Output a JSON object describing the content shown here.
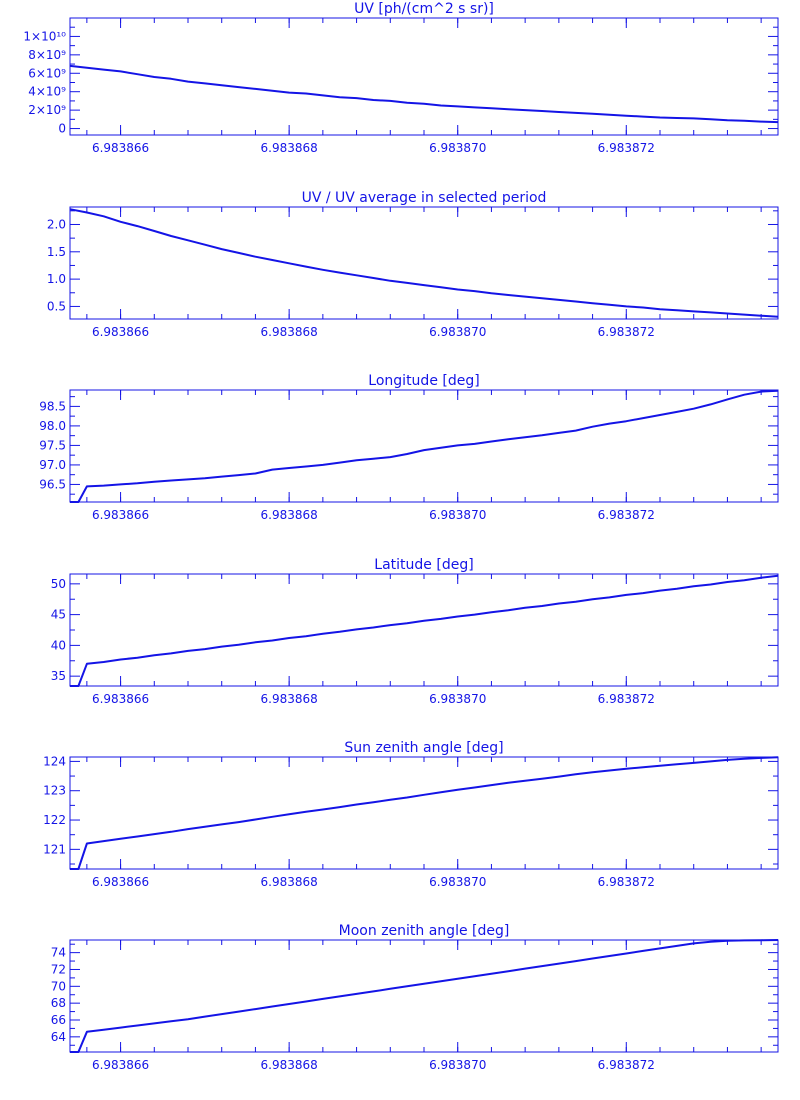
{
  "colors": {
    "axis": "#1414e6",
    "background": "#ffffff"
  },
  "chart_data": [
    {
      "type": "line",
      "title": "UV [ph/(cm^2 s sr)]",
      "xlabel": "",
      "ylabel": "",
      "xlim": [
        6.9838654,
        6.9838738
      ],
      "ylim": [
        -700000000.0,
        12000000000.0
      ],
      "yticks": [
        0,
        2000000000.0,
        4000000000.0,
        6000000000.0,
        8000000000.0,
        10000000000.0
      ],
      "ytick_labels": [
        "0",
        "2×10⁹",
        "4×10⁹",
        "6×10⁹",
        "8×10⁹",
        "1×10¹⁰"
      ],
      "xticks": [
        6.983866,
        6.983868,
        6.98387,
        6.983872
      ],
      "xtick_labels": [
        "6.983866",
        "6.983868",
        "6.983870",
        "6.983872"
      ],
      "grid": false,
      "series": [
        {
          "x": [
            6.9838654,
            6.9838656,
            6.9838658,
            6.983866,
            6.9838662,
            6.9838664,
            6.9838666,
            6.9838668,
            6.983867,
            6.9838672,
            6.9838674,
            6.9838676,
            6.9838678,
            6.983868,
            6.9838682,
            6.9838684,
            6.9838686,
            6.9838688,
            6.983869,
            6.9838692,
            6.9838694,
            6.9838696,
            6.9838698,
            6.98387,
            6.9838702,
            6.9838704,
            6.9838706,
            6.9838708,
            6.983871,
            6.9838712,
            6.9838714,
            6.9838716,
            6.9838718,
            6.983872,
            6.9838722,
            6.9838724,
            6.9838726,
            6.9838728,
            6.983873,
            6.9838732,
            6.9838734,
            6.9838736,
            6.9838738
          ],
          "y": [
            6800000000.0,
            6600000000.0,
            6400000000.0,
            6200000000.0,
            5900000000.0,
            5600000000.0,
            5400000000.0,
            5100000000.0,
            4900000000.0,
            4700000000.0,
            4500000000.0,
            4300000000.0,
            4100000000.0,
            3900000000.0,
            3800000000.0,
            3600000000.0,
            3400000000.0,
            3300000000.0,
            3100000000.0,
            3000000000.0,
            2800000000.0,
            2700000000.0,
            2500000000.0,
            2400000000.0,
            2300000000.0,
            2200000000.0,
            2100000000.0,
            2000000000.0,
            1900000000.0,
            1800000000.0,
            1700000000.0,
            1600000000.0,
            1500000000.0,
            1400000000.0,
            1300000000.0,
            1200000000.0,
            1150000000.0,
            1100000000.0,
            1000000000.0,
            900000000.0,
            850000000.0,
            750000000.0,
            700000000.0
          ]
        }
      ]
    },
    {
      "type": "line",
      "title": "UV / UV average in selected period",
      "xlabel": "",
      "ylabel": "",
      "xlim": [
        6.9838654,
        6.9838738
      ],
      "ylim": [
        0.27,
        2.32
      ],
      "yticks": [
        0.5,
        1.0,
        1.5,
        2.0
      ],
      "ytick_labels": [
        "0.5",
        "1.0",
        "1.5",
        "2.0"
      ],
      "xticks": [
        6.983866,
        6.983868,
        6.98387,
        6.983872
      ],
      "xtick_labels": [
        "6.983866",
        "6.983868",
        "6.983870",
        "6.983872"
      ],
      "grid": false,
      "series": [
        {
          "x": [
            6.9838654,
            6.9838656,
            6.9838658,
            6.983866,
            6.9838662,
            6.9838664,
            6.9838666,
            6.9838668,
            6.983867,
            6.9838672,
            6.9838674,
            6.9838676,
            6.9838678,
            6.983868,
            6.9838682,
            6.9838684,
            6.9838686,
            6.9838688,
            6.983869,
            6.9838692,
            6.9838694,
            6.9838696,
            6.9838698,
            6.98387,
            6.9838702,
            6.9838704,
            6.9838706,
            6.9838708,
            6.983871,
            6.9838712,
            6.9838714,
            6.9838716,
            6.9838718,
            6.983872,
            6.9838722,
            6.9838724,
            6.9838726,
            6.9838728,
            6.983873,
            6.9838732,
            6.9838734,
            6.9838736,
            6.9838738
          ],
          "y": [
            2.28,
            2.22,
            2.15,
            2.05,
            1.97,
            1.88,
            1.79,
            1.71,
            1.63,
            1.55,
            1.48,
            1.41,
            1.35,
            1.29,
            1.23,
            1.17,
            1.12,
            1.07,
            1.02,
            0.97,
            0.93,
            0.89,
            0.85,
            0.81,
            0.78,
            0.74,
            0.71,
            0.68,
            0.65,
            0.62,
            0.59,
            0.56,
            0.53,
            0.5,
            0.48,
            0.45,
            0.43,
            0.41,
            0.39,
            0.37,
            0.35,
            0.33,
            0.31
          ]
        }
      ]
    },
    {
      "type": "line",
      "title": "Longitude [deg]",
      "xlabel": "",
      "ylabel": "",
      "xlim": [
        6.9838654,
        6.9838738
      ],
      "ylim": [
        96.05,
        98.92
      ],
      "yticks": [
        96.5,
        97.0,
        97.5,
        98.0,
        98.5
      ],
      "ytick_labels": [
        "96.5",
        "97.0",
        "97.5",
        "98.0",
        "98.5"
      ],
      "xticks": [
        6.983866,
        6.983868,
        6.98387,
        6.983872
      ],
      "xtick_labels": [
        "6.983866",
        "6.983868",
        "6.983870",
        "6.983872"
      ],
      "grid": false,
      "series": [
        {
          "x": [
            6.9838654,
            6.9838655,
            6.9838656,
            6.9838658,
            6.983866,
            6.9838662,
            6.9838664,
            6.9838666,
            6.9838668,
            6.983867,
            6.9838672,
            6.9838674,
            6.9838676,
            6.9838678,
            6.983868,
            6.9838682,
            6.9838684,
            6.9838686,
            6.9838688,
            6.983869,
            6.9838692,
            6.9838694,
            6.9838696,
            6.9838698,
            6.98387,
            6.9838702,
            6.9838704,
            6.9838706,
            6.9838708,
            6.983871,
            6.9838712,
            6.9838714,
            6.9838716,
            6.9838718,
            6.983872,
            6.9838722,
            6.9838724,
            6.9838726,
            6.9838728,
            6.983873,
            6.9838732,
            6.9838734,
            6.9838736,
            6.9838738
          ],
          "y": [
            96.05,
            96.05,
            96.45,
            96.47,
            96.5,
            96.53,
            96.57,
            96.6,
            96.63,
            96.66,
            96.7,
            96.74,
            96.78,
            96.88,
            96.92,
            96.96,
            97.0,
            97.06,
            97.12,
            97.16,
            97.2,
            97.28,
            97.38,
            97.44,
            97.5,
            97.54,
            97.6,
            97.66,
            97.71,
            97.76,
            97.82,
            97.88,
            97.98,
            98.06,
            98.12,
            98.2,
            98.28,
            98.36,
            98.44,
            98.55,
            98.68,
            98.8,
            98.88,
            98.9
          ]
        }
      ]
    },
    {
      "type": "line",
      "title": "Latitude [deg]",
      "xlabel": "",
      "ylabel": "",
      "xlim": [
        6.9838654,
        6.9838738
      ],
      "ylim": [
        33.4,
        51.6
      ],
      "yticks": [
        35,
        40,
        45,
        50
      ],
      "ytick_labels": [
        "35",
        "40",
        "45",
        "50"
      ],
      "xticks": [
        6.983866,
        6.983868,
        6.98387,
        6.983872
      ],
      "xtick_labels": [
        "6.983866",
        "6.983868",
        "6.983870",
        "6.983872"
      ],
      "grid": false,
      "series": [
        {
          "x": [
            6.9838654,
            6.9838655,
            6.9838656,
            6.9838658,
            6.983866,
            6.9838662,
            6.9838664,
            6.9838666,
            6.9838668,
            6.983867,
            6.9838672,
            6.9838674,
            6.9838676,
            6.9838678,
            6.983868,
            6.9838682,
            6.9838684,
            6.9838686,
            6.9838688,
            6.983869,
            6.9838692,
            6.9838694,
            6.9838696,
            6.9838698,
            6.98387,
            6.9838702,
            6.9838704,
            6.9838706,
            6.9838708,
            6.983871,
            6.9838712,
            6.9838714,
            6.9838716,
            6.9838718,
            6.983872,
            6.9838722,
            6.9838724,
            6.9838726,
            6.9838728,
            6.983873,
            6.9838732,
            6.9838734,
            6.9838736,
            6.9838738
          ],
          "y": [
            33.4,
            33.4,
            37.0,
            37.3,
            37.7,
            38.0,
            38.4,
            38.7,
            39.1,
            39.4,
            39.8,
            40.1,
            40.5,
            40.8,
            41.2,
            41.5,
            41.9,
            42.2,
            42.6,
            42.9,
            43.3,
            43.6,
            44.0,
            44.3,
            44.7,
            45.0,
            45.4,
            45.7,
            46.1,
            46.4,
            46.8,
            47.1,
            47.5,
            47.8,
            48.2,
            48.5,
            48.9,
            49.2,
            49.6,
            49.9,
            50.3,
            50.6,
            51.0,
            51.3
          ]
        }
      ]
    },
    {
      "type": "line",
      "title": "Sun zenith angle [deg]",
      "xlabel": "",
      "ylabel": "",
      "xlim": [
        6.9838654,
        6.9838738
      ],
      "ylim": [
        120.33,
        124.15
      ],
      "yticks": [
        121,
        122,
        123,
        124
      ],
      "ytick_labels": [
        "121",
        "122",
        "123",
        "124"
      ],
      "xticks": [
        6.983866,
        6.983868,
        6.98387,
        6.983872
      ],
      "xtick_labels": [
        "6.983866",
        "6.983868",
        "6.983870",
        "6.983872"
      ],
      "grid": false,
      "series": [
        {
          "x": [
            6.9838654,
            6.9838655,
            6.9838656,
            6.9838658,
            6.983866,
            6.9838662,
            6.9838664,
            6.9838666,
            6.9838668,
            6.983867,
            6.9838672,
            6.9838674,
            6.9838676,
            6.9838678,
            6.983868,
            6.9838682,
            6.9838684,
            6.9838686,
            6.9838688,
            6.983869,
            6.9838692,
            6.9838694,
            6.9838696,
            6.9838698,
            6.98387,
            6.9838702,
            6.9838704,
            6.9838706,
            6.9838708,
            6.983871,
            6.9838712,
            6.9838714,
            6.9838716,
            6.9838718,
            6.983872,
            6.9838722,
            6.9838724,
            6.9838726,
            6.9838728,
            6.983873,
            6.9838732,
            6.9838734,
            6.9838736,
            6.9838738
          ],
          "y": [
            120.33,
            120.33,
            121.2,
            121.28,
            121.36,
            121.44,
            121.52,
            121.6,
            121.69,
            121.77,
            121.85,
            121.93,
            122.02,
            122.11,
            122.2,
            122.28,
            122.36,
            122.44,
            122.53,
            122.61,
            122.69,
            122.77,
            122.86,
            122.95,
            123.03,
            123.11,
            123.19,
            123.27,
            123.34,
            123.41,
            123.48,
            123.56,
            123.63,
            123.69,
            123.75,
            123.8,
            123.85,
            123.9,
            123.95,
            124.0,
            124.05,
            124.09,
            124.12,
            124.14
          ]
        }
      ]
    },
    {
      "type": "line",
      "title": "Moon zenith angle [deg]",
      "xlabel": "",
      "ylabel": "",
      "xlim": [
        6.9838654,
        6.9838738
      ],
      "ylim": [
        62.2,
        75.5
      ],
      "yticks": [
        64,
        66,
        68,
        70,
        72,
        74
      ],
      "ytick_labels": [
        "64",
        "66",
        "68",
        "70",
        "72",
        "74"
      ],
      "xticks": [
        6.983866,
        6.983868,
        6.98387,
        6.983872
      ],
      "xtick_labels": [
        "6.983866",
        "6.983868",
        "6.983870",
        "6.983872"
      ],
      "grid": false,
      "series": [
        {
          "x": [
            6.9838654,
            6.9838655,
            6.9838656,
            6.9838658,
            6.983866,
            6.9838662,
            6.9838664,
            6.9838666,
            6.9838668,
            6.983867,
            6.9838672,
            6.9838674,
            6.9838676,
            6.9838678,
            6.983868,
            6.9838682,
            6.9838684,
            6.9838686,
            6.9838688,
            6.983869,
            6.9838692,
            6.9838694,
            6.9838696,
            6.9838698,
            6.98387,
            6.9838702,
            6.9838704,
            6.9838706,
            6.9838708,
            6.983871,
            6.9838712,
            6.9838714,
            6.9838716,
            6.9838718,
            6.983872,
            6.9838722,
            6.9838724,
            6.9838726,
            6.9838728,
            6.983873,
            6.9838732,
            6.9838734,
            6.9838736,
            6.9838738
          ],
          "y": [
            62.2,
            62.2,
            64.6,
            64.85,
            65.1,
            65.35,
            65.6,
            65.85,
            66.1,
            66.4,
            66.7,
            67.0,
            67.3,
            67.6,
            67.9,
            68.2,
            68.5,
            68.8,
            69.1,
            69.4,
            69.7,
            70.0,
            70.3,
            70.6,
            70.9,
            71.2,
            71.5,
            71.8,
            72.1,
            72.4,
            72.7,
            73.0,
            73.3,
            73.6,
            73.9,
            74.2,
            74.5,
            74.8,
            75.1,
            75.3,
            75.4,
            75.45,
            75.48,
            75.5
          ]
        }
      ]
    }
  ]
}
